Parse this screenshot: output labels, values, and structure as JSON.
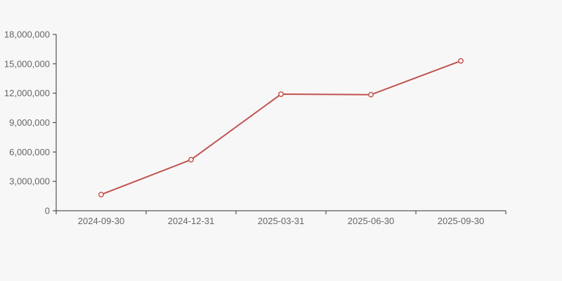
{
  "chart_data": {
    "type": "line",
    "title": "",
    "xlabel": "",
    "ylabel": "",
    "categories": [
      "2024-09-30",
      "2024-12-31",
      "2025-03-31",
      "2025-06-30",
      "2025-09-30"
    ],
    "series": [
      {
        "name": "value",
        "values": [
          1650000,
          5210000,
          11900000,
          11850000,
          15300000
        ]
      }
    ],
    "ylim": [
      0,
      18000000
    ],
    "ytick_step": 3000000,
    "ytick_labels": [
      "0",
      "3,000,000",
      "6,000,000",
      "9,000,000",
      "12,000,000",
      "15,000,000",
      "18,000,000"
    ],
    "grid": false,
    "legend": false
  },
  "style": {
    "background": "#f7f7f7",
    "axis_color": "#333333",
    "label_color": "#666666",
    "line_color": "#c2524d",
    "marker_fill": "#ffffff"
  }
}
